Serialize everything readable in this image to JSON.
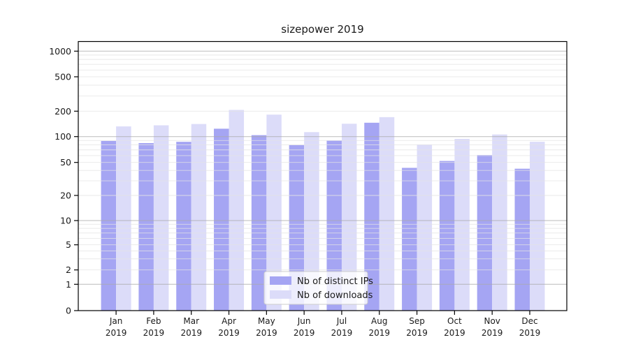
{
  "title": "sizepower 2019",
  "chart_data": {
    "type": "bar",
    "title": "sizepower 2019",
    "yscale": "symlog",
    "grid": "on",
    "ylim": [
      0,
      1300
    ],
    "yticks": [
      0,
      1,
      2,
      5,
      10,
      20,
      50,
      100,
      200,
      500,
      1000
    ],
    "categories": [
      "Jan 2019",
      "Feb 2019",
      "Mar 2019",
      "Apr 2019",
      "May 2019",
      "Jun 2019",
      "Jul 2019",
      "Aug 2019",
      "Sep 2019",
      "Oct 2019",
      "Nov 2019",
      "Dec 2019"
    ],
    "series": [
      {
        "name": "Nb of distinct IPs",
        "color": "#a5a5f3",
        "values": [
          89,
          84,
          87,
          124,
          104,
          80,
          90,
          146,
          43,
          52,
          61,
          42
        ]
      },
      {
        "name": "Nb of downloads",
        "color": "#dcdcf9",
        "values": [
          132,
          136,
          141,
          207,
          182,
          113,
          142,
          170,
          81,
          94,
          106,
          87
        ]
      }
    ],
    "legend": {
      "position": "lower center",
      "entries": [
        "Nb of distinct IPs",
        "Nb of downloads"
      ]
    }
  },
  "colors": {
    "bar_dark": "#a5a5f3",
    "bar_light": "#dcdcf9",
    "grid_major": "#ababab",
    "grid_minor": "#e4e4e4",
    "axis": "#000000",
    "legend_border": "#cccccc",
    "legend_bg": "#ffffff"
  }
}
